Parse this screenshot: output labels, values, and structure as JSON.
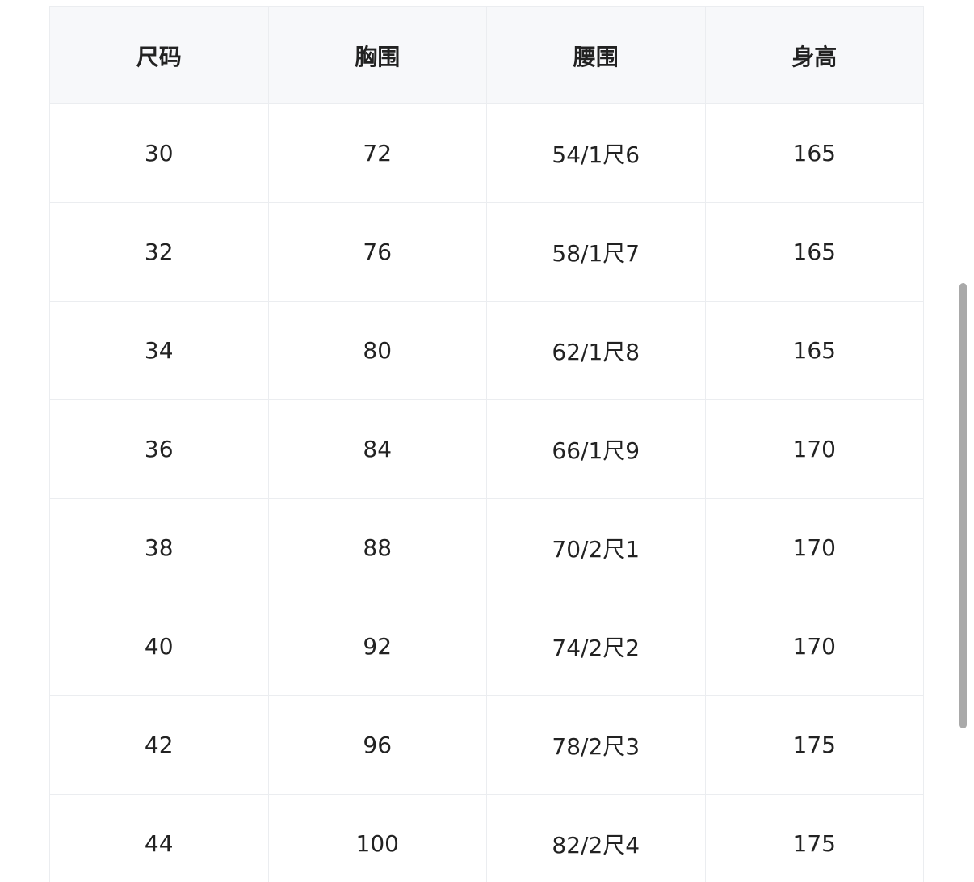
{
  "table": {
    "headers": [
      "尺码",
      "胸围",
      "腰围",
      "身高"
    ],
    "rows": [
      [
        "30",
        "72",
        "54/1尺6",
        "165"
      ],
      [
        "32",
        "76",
        "58/1尺7",
        "165"
      ],
      [
        "34",
        "80",
        "62/1尺8",
        "165"
      ],
      [
        "36",
        "84",
        "66/1尺9",
        "170"
      ],
      [
        "38",
        "88",
        "70/2尺1",
        "170"
      ],
      [
        "40",
        "92",
        "74/2尺2",
        "170"
      ],
      [
        "42",
        "96",
        "78/2尺3",
        "175"
      ],
      [
        "44",
        "100",
        "82/2尺4",
        "175"
      ]
    ]
  },
  "colors": {
    "header_bg": "#f7f8fa",
    "border": "#ebedf0",
    "text": "#222222",
    "scrollbar": "#a9a9a9"
  }
}
